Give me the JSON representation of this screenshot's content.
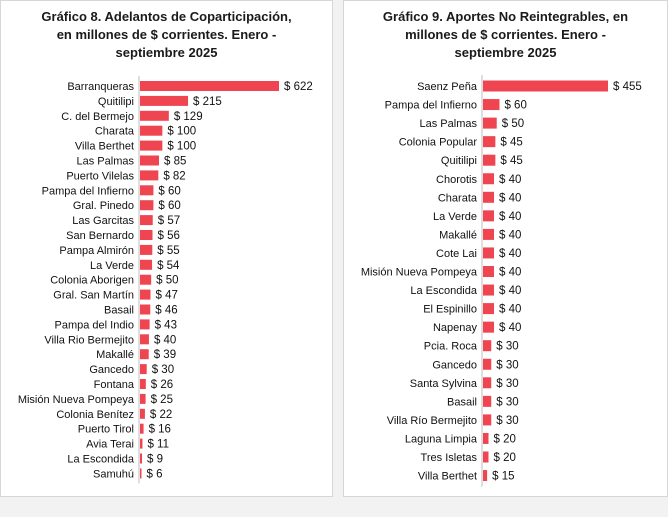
{
  "colors": {
    "bar": "#ef4550",
    "background": "#f2f2f2",
    "panel": "#ffffff"
  },
  "chart_data": [
    {
      "type": "bar",
      "orientation": "horizontal",
      "title": "Gráfico 8. Adelantos de Coparticipación, en millones de $ corrientes. Enero - septiembre 2025",
      "title_lines": [
        "Gráfico 8. Adelantos de Coparticipación,",
        "en millones de $ corrientes. Enero -",
        "septiembre 2025"
      ],
      "value_prefix": "$ ",
      "categories": [
        "Barranqueras",
        "Quitilipi",
        "C. del Bermejo",
        "Charata",
        "Villa Berthet",
        "Las Palmas",
        "Puerto Vilelas",
        "Pampa del Infierno",
        "Gral. Pinedo",
        "Las Garcitas",
        "San Bernardo",
        "Pampa Almirón",
        "La Verde",
        "Colonia Aborigen",
        "Gral. San Martín",
        "Basail",
        "Pampa del Indio",
        "Villa Rio Bermejito",
        "Makallé",
        "Gancedo",
        "Fontana",
        "Misión Nueva Pompeya",
        "Colonia Benítez",
        "Puerto Tirol",
        "Avia Terai",
        "La Escondida",
        "Samuhú"
      ],
      "values": [
        622,
        215,
        129,
        100,
        100,
        85,
        82,
        60,
        60,
        57,
        56,
        55,
        54,
        50,
        47,
        46,
        43,
        40,
        39,
        30,
        26,
        25,
        22,
        16,
        11,
        9,
        6
      ],
      "value_labels": [
        "$ 622",
        "$ 215",
        "$ 129",
        "$ 100",
        "$ 100",
        "$ 85",
        "$ 82",
        "$ 60",
        "$ 60",
        "$ 57",
        "$ 56",
        "$ 55",
        "$ 54",
        "$ 50",
        "$ 47",
        "$ 46",
        "$ 43",
        "$ 40",
        "$ 39",
        "$ 30",
        "$ 26",
        "$ 25",
        "$ 22",
        "$ 16",
        "$ 11",
        "$ 9",
        "$ 6"
      ],
      "xlim": [
        0,
        622
      ]
    },
    {
      "type": "bar",
      "orientation": "horizontal",
      "title": "Gráfico 9. Aportes No Reintegrables, en millones de $ corrientes. Enero - septiembre 2025",
      "title_lines": [
        "Gráfico 9. Aportes No Reintegrables, en",
        "millones de $ corrientes. Enero -",
        "septiembre 2025"
      ],
      "value_prefix": "$ ",
      "categories": [
        "Saenz Peña",
        "Pampa del Infierno",
        "Las Palmas",
        "Colonia Popular",
        "Quitilipi",
        "Chorotis",
        "Charata",
        "La Verde",
        "Makallé",
        "Cote Lai",
        "Misión Nueva Pompeya",
        "La Escondida",
        "El Espinillo",
        "Napenay",
        "Pcia. Roca",
        "Gancedo",
        "Santa Sylvina",
        "Basail",
        "Villa Río Bermejito",
        "Laguna Limpia",
        "Tres Isletas",
        "Villa Berthet"
      ],
      "values": [
        455,
        60,
        50,
        45,
        45,
        40,
        40,
        40,
        40,
        40,
        40,
        40,
        40,
        40,
        30,
        30,
        30,
        30,
        30,
        20,
        20,
        15
      ],
      "value_labels": [
        "$ 455",
        "$ 60",
        "$ 50",
        "$ 45",
        "$ 45",
        "$ 40",
        "$ 40",
        "$ 40",
        "$ 40",
        "$ 40",
        "$ 40",
        "$ 40",
        "$ 40",
        "$ 40",
        "$ 30",
        "$ 30",
        "$ 30",
        "$ 30",
        "$ 30",
        "$ 20",
        "$ 20",
        "$ 15"
      ],
      "xlim": [
        0,
        455
      ]
    }
  ]
}
